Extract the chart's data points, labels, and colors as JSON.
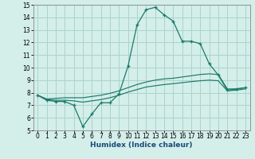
{
  "xlabel": "Humidex (Indice chaleur)",
  "x_values": [
    0,
    1,
    2,
    3,
    4,
    5,
    6,
    7,
    8,
    9,
    10,
    11,
    12,
    13,
    14,
    15,
    16,
    17,
    18,
    19,
    20,
    21,
    22,
    23
  ],
  "line1_y": [
    7.8,
    7.4,
    7.3,
    7.3,
    7.0,
    5.3,
    6.3,
    7.2,
    7.2,
    7.9,
    10.1,
    13.4,
    14.6,
    14.8,
    14.2,
    13.7,
    12.1,
    12.1,
    11.9,
    10.3,
    9.4,
    8.2,
    8.3,
    8.4
  ],
  "line2_y": [
    7.8,
    7.5,
    7.55,
    7.6,
    7.6,
    7.6,
    7.7,
    7.8,
    7.95,
    8.15,
    8.4,
    8.65,
    8.85,
    9.0,
    9.1,
    9.15,
    9.25,
    9.35,
    9.45,
    9.5,
    9.45,
    8.3,
    8.3,
    8.4
  ],
  "line3_y": [
    7.8,
    7.45,
    7.4,
    7.4,
    7.35,
    7.25,
    7.35,
    7.45,
    7.6,
    7.8,
    8.05,
    8.25,
    8.45,
    8.55,
    8.65,
    8.72,
    8.8,
    8.88,
    8.95,
    9.0,
    8.95,
    8.15,
    8.2,
    8.3
  ],
  "line_color": "#1a7a6a",
  "bg_color": "#d4eeea",
  "grid_color": "#aad4cc",
  "ylim": [
    5,
    15
  ],
  "xlim": [
    -0.5,
    23.5
  ],
  "yticks": [
    5,
    6,
    7,
    8,
    9,
    10,
    11,
    12,
    13,
    14,
    15
  ],
  "xticks": [
    0,
    1,
    2,
    3,
    4,
    5,
    6,
    7,
    8,
    9,
    10,
    11,
    12,
    13,
    14,
    15,
    16,
    17,
    18,
    19,
    20,
    21,
    22,
    23
  ],
  "tick_fontsize": 5.5,
  "xlabel_fontsize": 6.5
}
